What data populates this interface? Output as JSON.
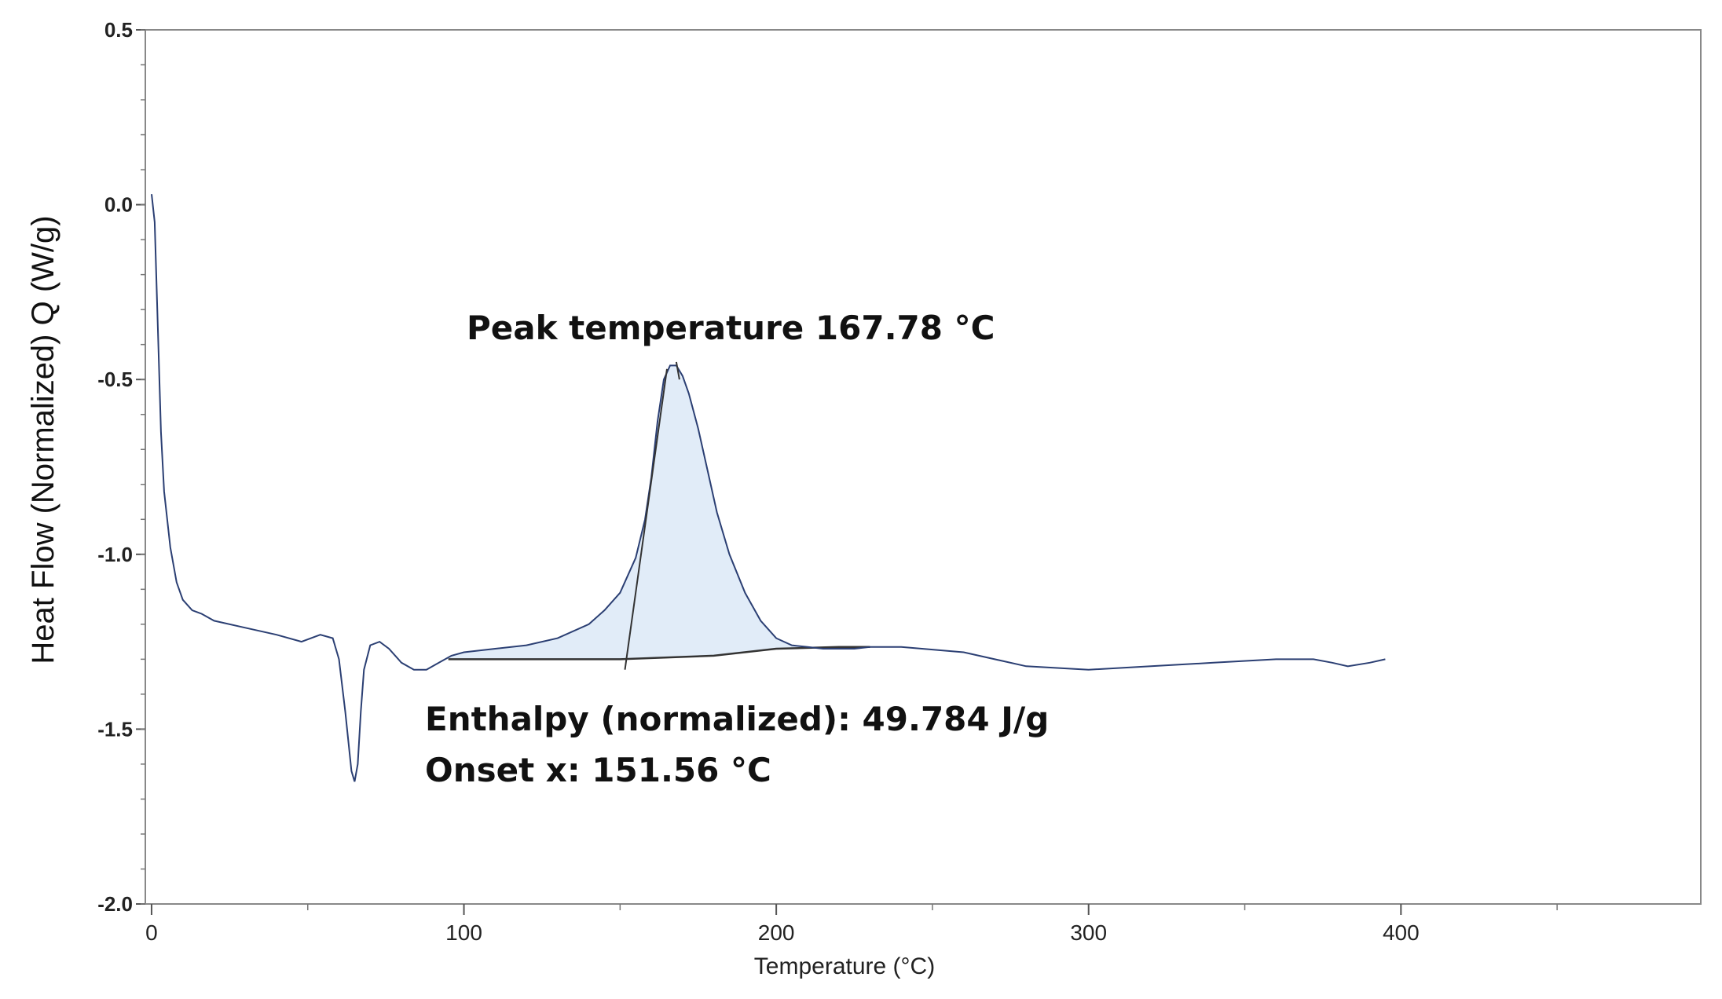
{
  "chart_data": {
    "type": "line",
    "title": "",
    "xlabel": "Temperature (°C)",
    "ylabel": "Heat Flow (Normalized) Q (W/g)",
    "xlim": [
      -2,
      496
    ],
    "ylim": [
      -2.0,
      0.5
    ],
    "x_ticks": [
      0,
      100,
      200,
      300,
      400
    ],
    "y_ticks": [
      0.5,
      0.0,
      -0.5,
      -1.0,
      -1.5,
      -2.0
    ],
    "x_tick_labels": [
      "0",
      "100",
      "200",
      "300",
      "400"
    ],
    "y_tick_labels": [
      "0.5",
      "0.0",
      "-0.5",
      "-1.0",
      "-1.5",
      "-2.0"
    ],
    "grid": false,
    "series": [
      {
        "color": "#2b3f73",
        "x": [
          0,
          1,
          2,
          3,
          4,
          6,
          8,
          10,
          13,
          16,
          20,
          30,
          40,
          48,
          54,
          58,
          60,
          62,
          64,
          65,
          66,
          67,
          68,
          70,
          73,
          76,
          80,
          84,
          88,
          92,
          96,
          100,
          110,
          120,
          130,
          140,
          145,
          150,
          155,
          158,
          160,
          162,
          164,
          166,
          168,
          170,
          172,
          175,
          178,
          181,
          185,
          190,
          195,
          200,
          205,
          210,
          215,
          220,
          225,
          230,
          240,
          260,
          280,
          300,
          320,
          340,
          360,
          372,
          378,
          383,
          390,
          395
        ],
        "y": [
          0.03,
          -0.05,
          -0.35,
          -0.65,
          -0.82,
          -0.98,
          -1.08,
          -1.13,
          -1.16,
          -1.17,
          -1.19,
          -1.21,
          -1.23,
          -1.25,
          -1.23,
          -1.24,
          -1.3,
          -1.45,
          -1.62,
          -1.65,
          -1.6,
          -1.45,
          -1.33,
          -1.26,
          -1.25,
          -1.27,
          -1.31,
          -1.33,
          -1.33,
          -1.31,
          -1.29,
          -1.28,
          -1.27,
          -1.26,
          -1.24,
          -1.2,
          -1.16,
          -1.11,
          -1.01,
          -0.9,
          -0.78,
          -0.62,
          -0.5,
          -0.46,
          -0.46,
          -0.49,
          -0.54,
          -0.64,
          -0.76,
          -0.88,
          -1.0,
          -1.11,
          -1.19,
          -1.24,
          -1.26,
          -1.265,
          -1.27,
          -1.27,
          -1.27,
          -1.265,
          -1.265,
          -1.28,
          -1.32,
          -1.33,
          -1.32,
          -1.31,
          -1.3,
          -1.3,
          -1.31,
          -1.32,
          -1.31,
          -1.3
        ]
      }
    ],
    "baseline": {
      "x": [
        95,
        150,
        180,
        200,
        220,
        230
      ],
      "y": [
        -1.3,
        -1.3,
        -1.29,
        -1.27,
        -1.265,
        -1.265
      ]
    },
    "onset_tangent": {
      "x": [
        151.56,
        165
      ],
      "y": [
        -1.33,
        -0.47
      ]
    },
    "peak_marker": {
      "x": [
        168,
        169
      ],
      "y": [
        -0.45,
        -0.5
      ]
    },
    "annotations": [
      {
        "text": "Peak temperature 167.78 °C"
      },
      {
        "text": "Enthalpy (normalized): 49.784 J/g"
      },
      {
        "text": "Onset x: 151.56 °C"
      }
    ]
  }
}
